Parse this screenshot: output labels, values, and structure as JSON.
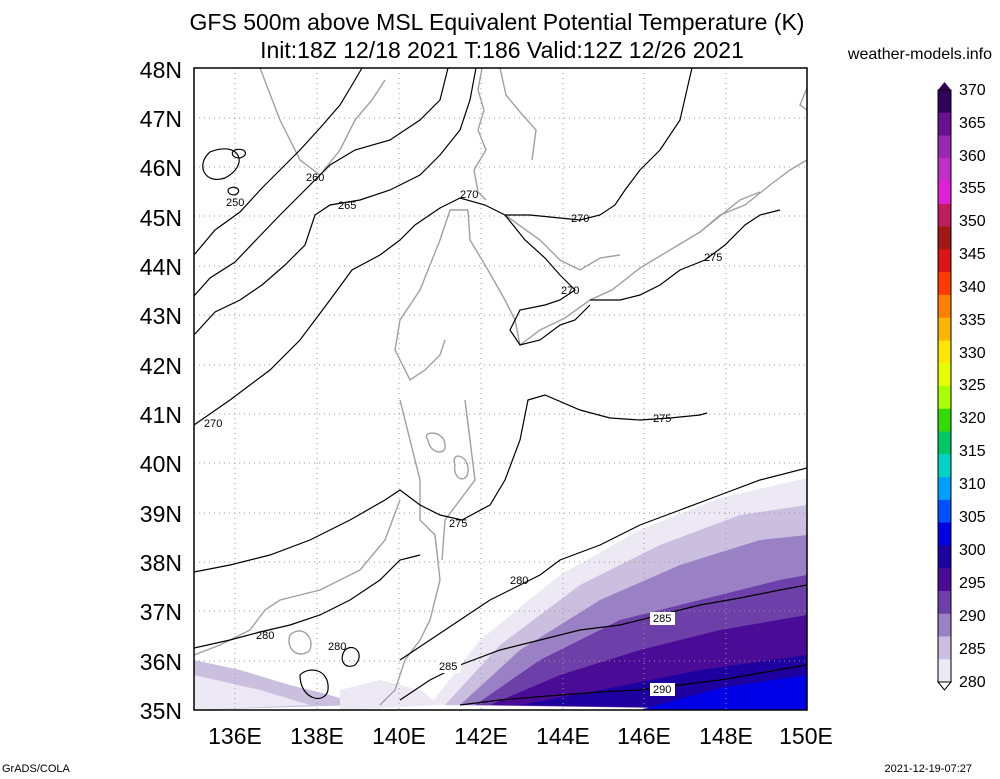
{
  "header": {
    "title_line1": "GFS 500m above MSL Equivalent Potential Temperature (K)",
    "title_line2": "Init:18Z 12/18 2021 T:186 Valid:12Z 12/26 2021",
    "site": "weather-models.info"
  },
  "map": {
    "lat_labels": [
      "48N",
      "47N",
      "46N",
      "45N",
      "44N",
      "43N",
      "42N",
      "41N",
      "40N",
      "39N",
      "38N",
      "37N",
      "36N",
      "35N"
    ],
    "lon_labels": [
      "136E",
      "138E",
      "140E",
      "142E",
      "144E",
      "146E",
      "148E",
      "150E"
    ],
    "lat_range": [
      35,
      48
    ],
    "lon_range": [
      135,
      150
    ],
    "grid": "dotted",
    "contour_labels": [
      "250",
      "260",
      "265",
      "270",
      "270",
      "270",
      "270",
      "275",
      "275",
      "275",
      "280",
      "280",
      "280",
      "285",
      "285",
      "290"
    ]
  },
  "colorbar": {
    "labels": [
      "370",
      "365",
      "360",
      "355",
      "350",
      "345",
      "340",
      "335",
      "330",
      "325",
      "320",
      "315",
      "310",
      "305",
      "300",
      "295",
      "290",
      "285",
      "280"
    ],
    "colors": [
      "#30005a",
      "#6a1090",
      "#9a28b0",
      "#c030c8",
      "#e020d8",
      "#c01e5a",
      "#a01818",
      "#dc1414",
      "#ff3c00",
      "#ff8000",
      "#ffb400",
      "#ffe600",
      "#e6ff00",
      "#aaff00",
      "#32dc00",
      "#00c864",
      "#00d2c8",
      "#00a0ff",
      "#0050ff",
      "#0000e6",
      "#1e00a0",
      "#4a0c96",
      "#6c40a8",
      "#9a80c4",
      "#cbbfe0",
      "#ece8f4"
    ]
  },
  "footer": {
    "left": "GrADS/COLA",
    "right": "2021-12-19-07:27"
  }
}
